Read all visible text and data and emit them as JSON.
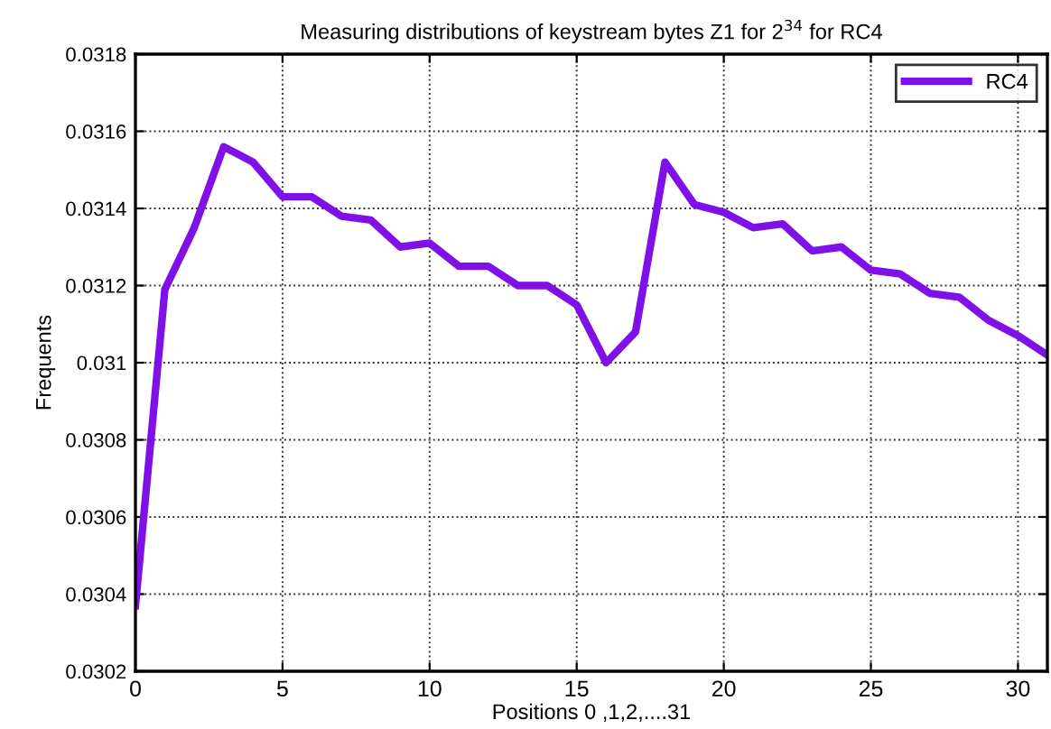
{
  "chart_data": {
    "type": "line",
    "title": "Measuring distributions of keystream bytes Z1 for 2$^{34}$ for RC4",
    "xlabel": "Positions 0 ,1,2,....31",
    "ylabel": "Frequents",
    "x": [
      0,
      1,
      2,
      3,
      4,
      5,
      6,
      7,
      8,
      9,
      10,
      11,
      12,
      13,
      14,
      15,
      16,
      17,
      18,
      19,
      20,
      21,
      22,
      23,
      24,
      25,
      26,
      27,
      28,
      29,
      30,
      31
    ],
    "series": [
      {
        "name": "RC4",
        "color": "#8010e8",
        "values": [
          0.03037,
          0.03119,
          0.03135,
          0.03156,
          0.03152,
          0.03143,
          0.03143,
          0.03138,
          0.03137,
          0.0313,
          0.03131,
          0.03125,
          0.03125,
          0.0312,
          0.0312,
          0.03115,
          0.031,
          0.03108,
          0.03152,
          0.03141,
          0.03139,
          0.03135,
          0.03136,
          0.03129,
          0.0313,
          0.03124,
          0.03123,
          0.03118,
          0.03117,
          0.03111,
          0.03107,
          0.03102
        ]
      }
    ],
    "xlim": [
      0,
      31
    ],
    "xticks": [
      0,
      5,
      10,
      15,
      20,
      25,
      30
    ],
    "ylim": [
      0.0302,
      0.0318
    ],
    "yticks": [
      0.0302,
      0.0304,
      0.0306,
      0.0308,
      0.031,
      0.0312,
      0.0314,
      0.0316,
      0.0318
    ],
    "grid": true,
    "legend": "top right",
    "marker": "none",
    "line_style": "solid"
  }
}
